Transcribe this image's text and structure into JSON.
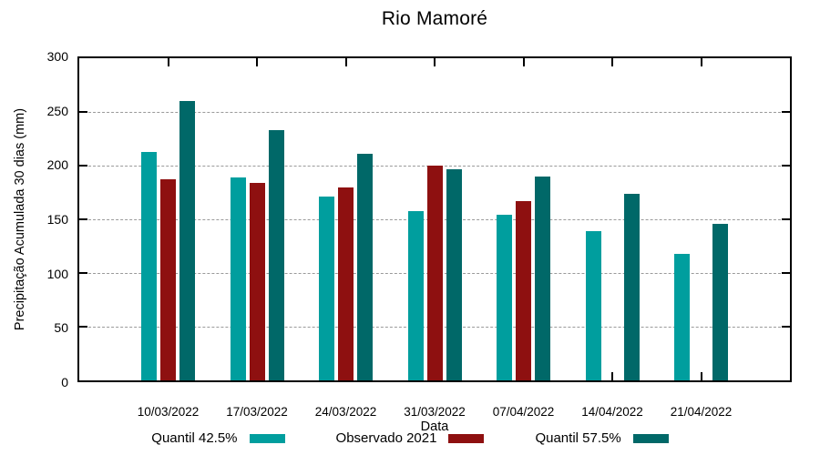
{
  "chart_data": {
    "type": "bar",
    "title": "Rio Mamoré",
    "xlabel": "Data",
    "ylabel": "Precipitação Acumulada 30 dias (mm)",
    "categories": [
      "10/03/2022",
      "17/03/2022",
      "24/03/2022",
      "31/03/2022",
      "07/04/2022",
      "14/04/2022",
      "21/04/2022"
    ],
    "series": [
      {
        "name": "Quantil 42.5%",
        "color": "#009e9e",
        "values": [
          213,
          189,
          171,
          158,
          154,
          139,
          118
        ]
      },
      {
        "name": "Observado 2021",
        "color": "#8e1010",
        "values": [
          187,
          184,
          180,
          200,
          167,
          null,
          null
        ]
      },
      {
        "name": "Quantil 57.5%",
        "color": "#006868",
        "values": [
          260,
          233,
          211,
          197,
          190,
          174,
          146
        ]
      }
    ],
    "ylim": [
      0,
      300
    ],
    "ytick_step": 50,
    "grid": "horizontal-dashed",
    "legend_position": "below",
    "axis_color": "#000000",
    "grid_color": "#9a9a9a"
  }
}
